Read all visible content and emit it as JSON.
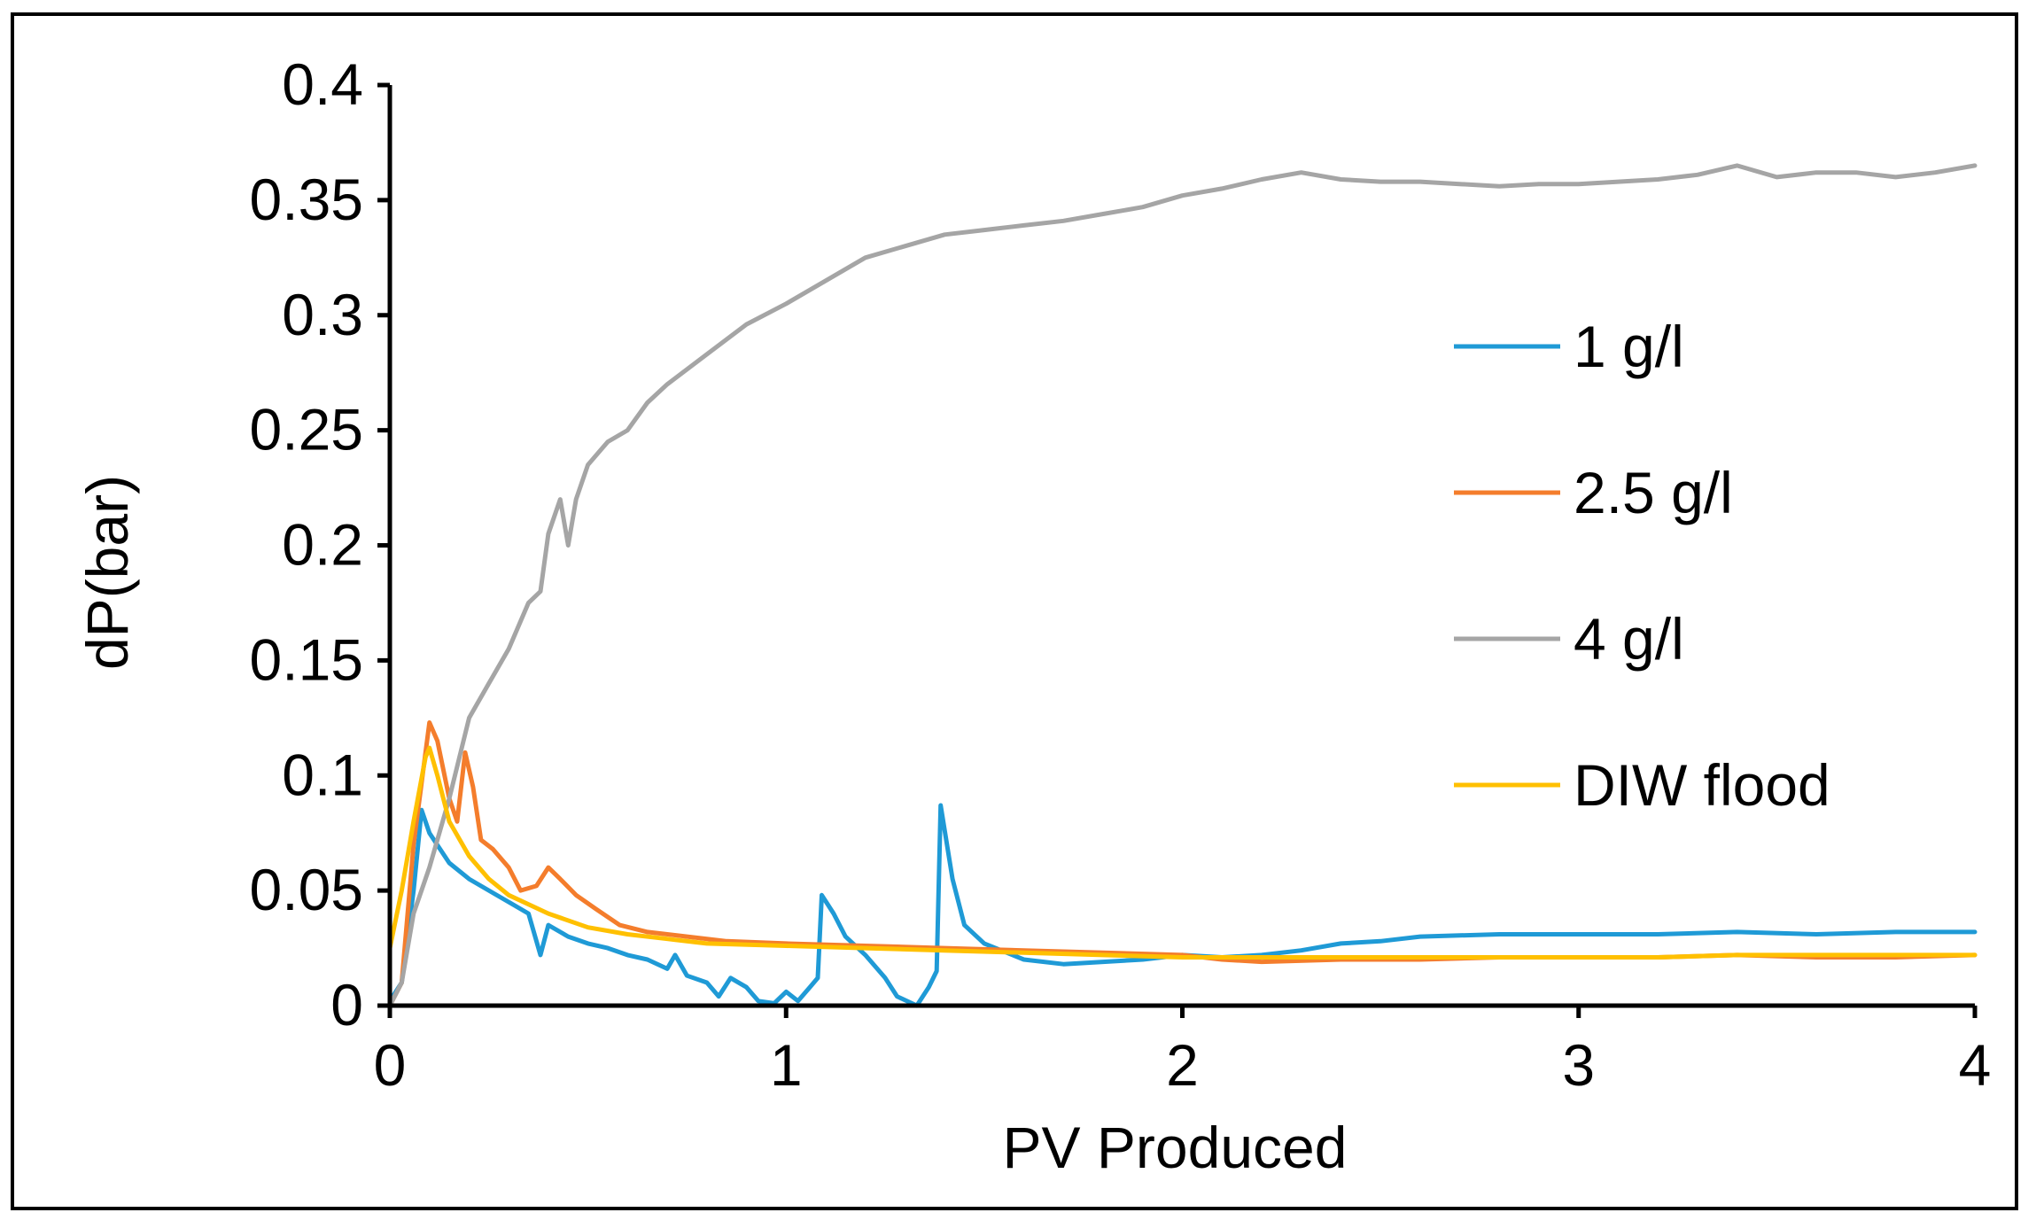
{
  "chart_data": {
    "type": "line",
    "title": "",
    "xlabel": "PV Produced",
    "ylabel": "dP(bar)",
    "xlim": [
      0,
      4
    ],
    "ylim": [
      0,
      0.4
    ],
    "x_ticks": [
      0,
      1,
      2,
      3,
      4
    ],
    "y_ticks": [
      0,
      0.05,
      0.1,
      0.15,
      0.2,
      0.25,
      0.3,
      0.35,
      0.4
    ],
    "x_tick_labels": [
      "0",
      "1",
      "2",
      "3",
      "4"
    ],
    "y_tick_labels": [
      "0",
      "0.05",
      "0.1",
      "0.15",
      "0.2",
      "0.25",
      "0.3",
      "0.35",
      "0.4"
    ],
    "grid": false,
    "legend_position": "right",
    "series": [
      {
        "name": "1 g/l",
        "color": "#1f9ad6",
        "points": [
          [
            0,
            0.002
          ],
          [
            0.03,
            0.01
          ],
          [
            0.06,
            0.05
          ],
          [
            0.08,
            0.085
          ],
          [
            0.1,
            0.075
          ],
          [
            0.15,
            0.062
          ],
          [
            0.2,
            0.055
          ],
          [
            0.25,
            0.05
          ],
          [
            0.3,
            0.045
          ],
          [
            0.35,
            0.04
          ],
          [
            0.38,
            0.022
          ],
          [
            0.4,
            0.035
          ],
          [
            0.45,
            0.03
          ],
          [
            0.5,
            0.027
          ],
          [
            0.55,
            0.025
          ],
          [
            0.6,
            0.022
          ],
          [
            0.65,
            0.02
          ],
          [
            0.7,
            0.016
          ],
          [
            0.72,
            0.022
          ],
          [
            0.75,
            0.013
          ],
          [
            0.8,
            0.01
          ],
          [
            0.83,
            0.004
          ],
          [
            0.86,
            0.012
          ],
          [
            0.9,
            0.008
          ],
          [
            0.93,
            0.002
          ],
          [
            0.97,
            0.001
          ],
          [
            1.0,
            0.006
          ],
          [
            1.03,
            0.002
          ],
          [
            1.06,
            0.008
          ],
          [
            1.08,
            0.012
          ],
          [
            1.09,
            0.048
          ],
          [
            1.12,
            0.04
          ],
          [
            1.15,
            0.03
          ],
          [
            1.2,
            0.022
          ],
          [
            1.25,
            0.012
          ],
          [
            1.28,
            0.004
          ],
          [
            1.33,
            0.0
          ],
          [
            1.36,
            0.008
          ],
          [
            1.38,
            0.015
          ],
          [
            1.39,
            0.087
          ],
          [
            1.42,
            0.055
          ],
          [
            1.45,
            0.035
          ],
          [
            1.5,
            0.027
          ],
          [
            1.6,
            0.02
          ],
          [
            1.7,
            0.018
          ],
          [
            1.8,
            0.019
          ],
          [
            1.9,
            0.02
          ],
          [
            2.0,
            0.022
          ],
          [
            2.1,
            0.021
          ],
          [
            2.2,
            0.022
          ],
          [
            2.3,
            0.024
          ],
          [
            2.4,
            0.027
          ],
          [
            2.5,
            0.028
          ],
          [
            2.6,
            0.03
          ],
          [
            2.8,
            0.031
          ],
          [
            3.0,
            0.031
          ],
          [
            3.2,
            0.031
          ],
          [
            3.4,
            0.032
          ],
          [
            3.6,
            0.031
          ],
          [
            3.8,
            0.032
          ],
          [
            4.0,
            0.032
          ]
        ]
      },
      {
        "name": "2.5 g/l",
        "color": "#f47d2c",
        "points": [
          [
            0,
            0.0
          ],
          [
            0.03,
            0.01
          ],
          [
            0.06,
            0.07
          ],
          [
            0.09,
            0.11
          ],
          [
            0.1,
            0.123
          ],
          [
            0.12,
            0.115
          ],
          [
            0.15,
            0.09
          ],
          [
            0.17,
            0.08
          ],
          [
            0.19,
            0.11
          ],
          [
            0.21,
            0.095
          ],
          [
            0.23,
            0.072
          ],
          [
            0.26,
            0.068
          ],
          [
            0.3,
            0.06
          ],
          [
            0.33,
            0.05
          ],
          [
            0.37,
            0.052
          ],
          [
            0.4,
            0.06
          ],
          [
            0.43,
            0.055
          ],
          [
            0.47,
            0.048
          ],
          [
            0.52,
            0.042
          ],
          [
            0.58,
            0.035
          ],
          [
            0.65,
            0.032
          ],
          [
            0.75,
            0.03
          ],
          [
            0.85,
            0.028
          ],
          [
            1.0,
            0.027
          ],
          [
            1.2,
            0.026
          ],
          [
            1.4,
            0.025
          ],
          [
            1.6,
            0.024
          ],
          [
            1.8,
            0.023
          ],
          [
            2.0,
            0.022
          ],
          [
            2.1,
            0.02
          ],
          [
            2.2,
            0.019
          ],
          [
            2.4,
            0.02
          ],
          [
            2.6,
            0.02
          ],
          [
            2.8,
            0.021
          ],
          [
            3.0,
            0.021
          ],
          [
            3.2,
            0.021
          ],
          [
            3.4,
            0.022
          ],
          [
            3.6,
            0.021
          ],
          [
            3.8,
            0.021
          ],
          [
            4.0,
            0.022
          ]
        ]
      },
      {
        "name": "4 g/l",
        "color": "#a5a5a5",
        "points": [
          [
            0,
            0.0
          ],
          [
            0.03,
            0.01
          ],
          [
            0.06,
            0.04
          ],
          [
            0.1,
            0.06
          ],
          [
            0.15,
            0.09
          ],
          [
            0.2,
            0.125
          ],
          [
            0.25,
            0.14
          ],
          [
            0.3,
            0.155
          ],
          [
            0.35,
            0.175
          ],
          [
            0.38,
            0.18
          ],
          [
            0.4,
            0.205
          ],
          [
            0.43,
            0.22
          ],
          [
            0.45,
            0.2
          ],
          [
            0.47,
            0.22
          ],
          [
            0.5,
            0.235
          ],
          [
            0.55,
            0.245
          ],
          [
            0.6,
            0.25
          ],
          [
            0.65,
            0.262
          ],
          [
            0.7,
            0.27
          ],
          [
            0.8,
            0.283
          ],
          [
            0.9,
            0.296
          ],
          [
            1.0,
            0.305
          ],
          [
            1.1,
            0.315
          ],
          [
            1.2,
            0.325
          ],
          [
            1.3,
            0.33
          ],
          [
            1.4,
            0.335
          ],
          [
            1.5,
            0.337
          ],
          [
            1.6,
            0.339
          ],
          [
            1.7,
            0.341
          ],
          [
            1.8,
            0.344
          ],
          [
            1.9,
            0.347
          ],
          [
            2.0,
            0.352
          ],
          [
            2.1,
            0.355
          ],
          [
            2.2,
            0.359
          ],
          [
            2.3,
            0.362
          ],
          [
            2.4,
            0.359
          ],
          [
            2.5,
            0.358
          ],
          [
            2.6,
            0.358
          ],
          [
            2.7,
            0.357
          ],
          [
            2.8,
            0.356
          ],
          [
            2.9,
            0.357
          ],
          [
            3.0,
            0.357
          ],
          [
            3.1,
            0.358
          ],
          [
            3.2,
            0.359
          ],
          [
            3.3,
            0.361
          ],
          [
            3.4,
            0.365
          ],
          [
            3.5,
            0.36
          ],
          [
            3.6,
            0.362
          ],
          [
            3.7,
            0.362
          ],
          [
            3.8,
            0.36
          ],
          [
            3.9,
            0.362
          ],
          [
            4.0,
            0.365
          ]
        ]
      },
      {
        "name": "DIW flood",
        "color": "#ffc000",
        "points": [
          [
            0,
            0.025
          ],
          [
            0.03,
            0.05
          ],
          [
            0.06,
            0.08
          ],
          [
            0.09,
            0.108
          ],
          [
            0.1,
            0.112
          ],
          [
            0.12,
            0.1
          ],
          [
            0.15,
            0.08
          ],
          [
            0.2,
            0.065
          ],
          [
            0.25,
            0.055
          ],
          [
            0.3,
            0.048
          ],
          [
            0.4,
            0.04
          ],
          [
            0.5,
            0.034
          ],
          [
            0.6,
            0.031
          ],
          [
            0.7,
            0.029
          ],
          [
            0.8,
            0.027
          ],
          [
            1.0,
            0.026
          ],
          [
            1.2,
            0.025
          ],
          [
            1.4,
            0.024
          ],
          [
            1.6,
            0.023
          ],
          [
            1.8,
            0.022
          ],
          [
            2.0,
            0.021
          ],
          [
            2.2,
            0.021
          ],
          [
            2.4,
            0.021
          ],
          [
            2.6,
            0.021
          ],
          [
            2.8,
            0.021
          ],
          [
            3.0,
            0.021
          ],
          [
            3.2,
            0.021
          ],
          [
            3.4,
            0.022
          ],
          [
            3.6,
            0.022
          ],
          [
            3.8,
            0.022
          ],
          [
            4.0,
            0.022
          ]
        ]
      }
    ]
  }
}
